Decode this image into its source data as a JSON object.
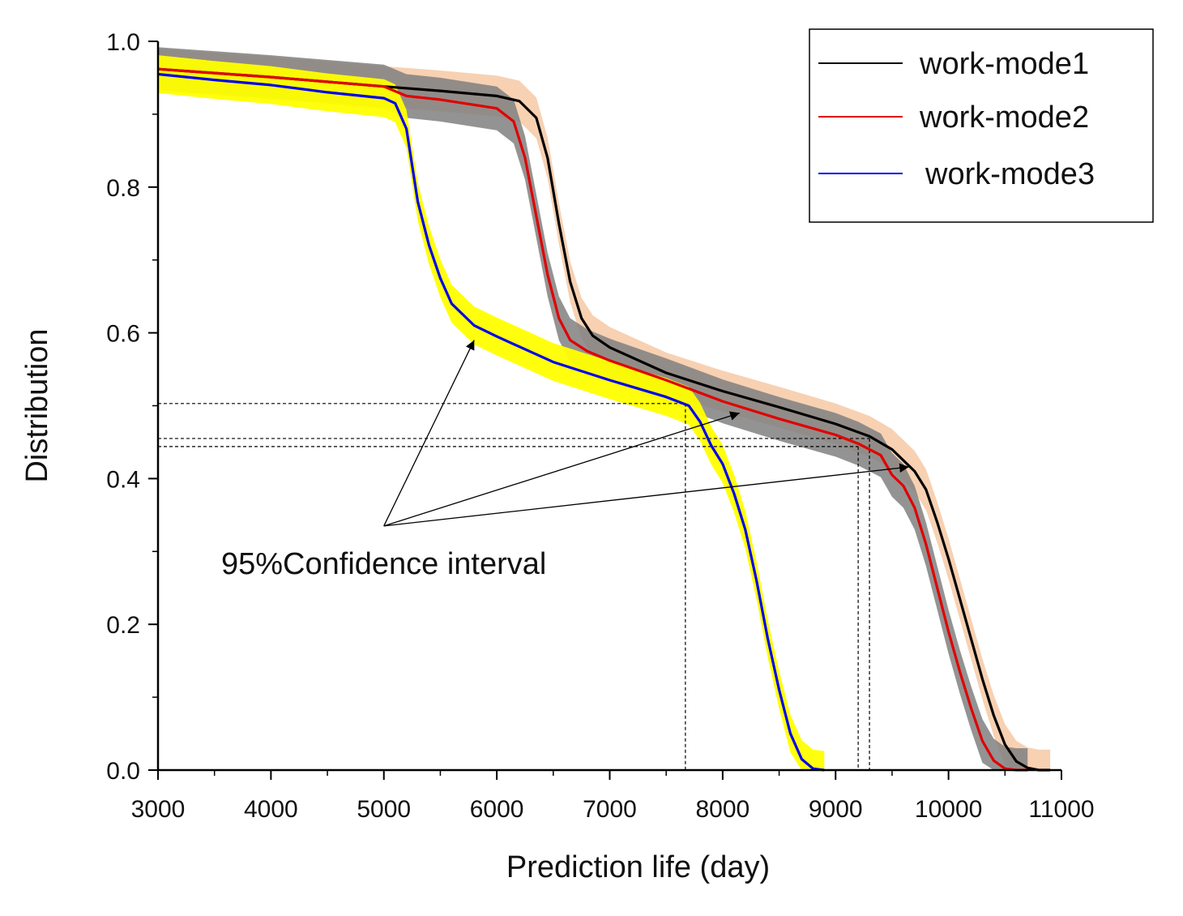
{
  "chart_data": {
    "type": "line",
    "title": "",
    "xlabel": "Prediction life (day)",
    "ylabel": "Distribution",
    "xlim": [
      3000,
      11000
    ],
    "ylim": [
      0,
      1.0
    ],
    "x_ticks": [
      3000,
      4000,
      5000,
      6000,
      7000,
      8000,
      9000,
      10000,
      11000
    ],
    "x_tick_labels": [
      "3000",
      "4000",
      "5000",
      "6000",
      "7000",
      "8000",
      "9000",
      "10000",
      "11000"
    ],
    "y_ticks": [
      0.0,
      0.2,
      0.4,
      0.6,
      0.8,
      1.0
    ],
    "y_tick_labels": [
      "0.0",
      "0.2",
      "0.4",
      "0.6",
      "0.8",
      "1.0"
    ],
    "grid": false,
    "legend_position": "top-right",
    "series": [
      {
        "name": "work-mode1",
        "color": "#000000",
        "band_color": "#f7cfae",
        "x": [
          3000,
          4000,
          5000,
          5500,
          6000,
          6200,
          6350,
          6450,
          6550,
          6650,
          6750,
          6850,
          7000,
          7500,
          8000,
          8500,
          9000,
          9300,
          9500,
          9700,
          9800,
          9900,
          10000,
          10100,
          10200,
          10300,
          10400,
          10500,
          10600,
          10700,
          10800,
          10900
        ],
        "y": [
          0.962,
          0.951,
          0.938,
          0.932,
          0.925,
          0.918,
          0.895,
          0.84,
          0.75,
          0.67,
          0.62,
          0.596,
          0.58,
          0.545,
          0.52,
          0.498,
          0.475,
          0.458,
          0.44,
          0.41,
          0.385,
          0.34,
          0.29,
          0.235,
          0.18,
          0.125,
          0.075,
          0.035,
          0.012,
          0.003,
          0.0,
          0.0
        ],
        "band_width": 0.028
      },
      {
        "name": "work-mode2",
        "color": "#e00000",
        "band_color": "#808080",
        "x": [
          3000,
          4000,
          5000,
          5200,
          5500,
          6000,
          6150,
          6250,
          6350,
          6450,
          6550,
          6650,
          6800,
          7000,
          7500,
          8000,
          8500,
          9000,
          9200,
          9400,
          9500,
          9600,
          9700,
          9800,
          9900,
          10000,
          10100,
          10200,
          10300,
          10400,
          10500,
          10600,
          10700
        ],
        "y": [
          0.962,
          0.951,
          0.938,
          0.925,
          0.92,
          0.908,
          0.89,
          0.84,
          0.76,
          0.68,
          0.62,
          0.59,
          0.575,
          0.562,
          0.535,
          0.506,
          0.482,
          0.46,
          0.448,
          0.432,
          0.405,
          0.39,
          0.36,
          0.31,
          0.25,
          0.19,
          0.135,
          0.085,
          0.04,
          0.013,
          0.002,
          0.0,
          0.0
        ],
        "band_width": 0.03
      },
      {
        "name": "work-mode3",
        "color": "#0000ee",
        "band_color": "#ffff00",
        "x": [
          3000,
          3500,
          4000,
          4500,
          5000,
          5100,
          5200,
          5300,
          5400,
          5500,
          5600,
          5800,
          6000,
          6500,
          7000,
          7500,
          7700,
          7800,
          7900,
          8000,
          8100,
          8200,
          8300,
          8400,
          8500,
          8600,
          8700,
          8800,
          8900
        ],
        "y": [
          0.955,
          0.947,
          0.94,
          0.93,
          0.922,
          0.915,
          0.88,
          0.78,
          0.72,
          0.675,
          0.64,
          0.61,
          0.595,
          0.56,
          0.535,
          0.512,
          0.5,
          0.478,
          0.445,
          0.42,
          0.38,
          0.33,
          0.26,
          0.18,
          0.11,
          0.05,
          0.015,
          0.002,
          0.0
        ],
        "band_width": 0.026
      }
    ],
    "reference_lines": {
      "horizontal_y": [
        0.503,
        0.455,
        0.444
      ],
      "vertical_x": [
        7670,
        9200,
        9300
      ]
    },
    "annotation": {
      "text": "95%Confidence interval",
      "arrow_origin": [
        5000,
        0.335
      ],
      "arrow_targets": [
        [
          5800,
          0.59
        ],
        [
          8150,
          0.49
        ],
        [
          9650,
          0.416
        ]
      ]
    }
  }
}
